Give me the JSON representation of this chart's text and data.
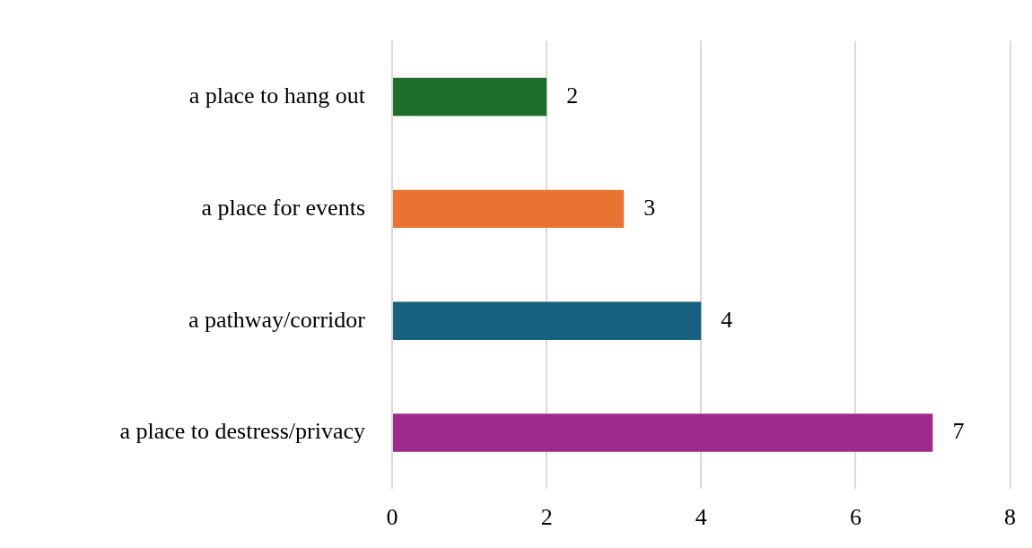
{
  "chart_data": {
    "type": "bar",
    "orientation": "horizontal",
    "categories": [
      "a place to hang out",
      "a place for events",
      "a pathway/corridor",
      "a place to destress/privacy"
    ],
    "values": [
      2,
      3,
      4,
      7
    ],
    "colors": [
      "#1e6e2a",
      "#e87332",
      "#17607f",
      "#9e2a8e"
    ],
    "xlim": [
      0,
      8
    ],
    "xticks": [
      0,
      2,
      4,
      6,
      8
    ],
    "grid": "x",
    "data_labels": true
  }
}
